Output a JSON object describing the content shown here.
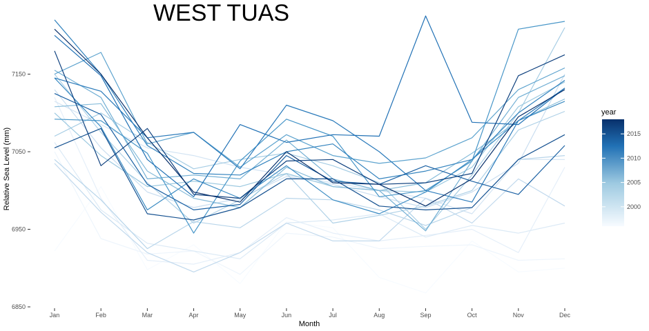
{
  "chart_data": {
    "type": "line",
    "title": "WEST TUAS",
    "xlabel": "Month",
    "ylabel": "Relative Sea Level (mm)",
    "categories": [
      "Jan",
      "Feb",
      "Mar",
      "Apr",
      "May",
      "Jun",
      "Jul",
      "Aug",
      "Sep",
      "Oct",
      "Nov",
      "Dec"
    ],
    "ylim": [
      6850,
      7210
    ],
    "yticks": [
      6850,
      6950,
      7050,
      7150
    ],
    "grid": false,
    "legend": {
      "title": "year",
      "position": "right",
      "type": "colorbar",
      "range": [
        1996,
        2018
      ],
      "ticks": [
        2000,
        2005,
        2010,
        2015
      ],
      "color_low": "#f7fbff",
      "color_high": "#08306b"
    },
    "series": [
      {
        "year": 1996,
        "values": [
          6922,
          7005,
          6898,
          6930,
          6880,
          6960,
          6952,
          6888,
          6868,
          6935,
          6895,
          6900
        ]
      },
      {
        "year": 1997,
        "values": [
          7050,
          6938,
          6918,
          6922,
          6892,
          6945,
          6940,
          6925,
          6928,
          6930,
          6910,
          6912
        ]
      },
      {
        "year": 1998,
        "values": [
          7120,
          6990,
          6910,
          6905,
          6920,
          6965,
          6945,
          6935,
          6942,
          6950,
          6920,
          7030
        ]
      },
      {
        "year": 1999,
        "values": [
          7062,
          6975,
          6932,
          6922,
          6912,
          6958,
          6962,
          6970,
          6940,
          6955,
          6945,
          6958
        ]
      },
      {
        "year": 2000,
        "values": [
          7115,
          7085,
          7055,
          7045,
          7030,
          7020,
          7010,
          7000,
          6990,
          6970,
          7040,
          7040
        ]
      },
      {
        "year": 2001,
        "values": [
          7130,
          7055,
          6998,
          6978,
          6990,
          7018,
          7008,
          6992,
          6978,
          6998,
          7035,
          7150
        ]
      },
      {
        "year": 2002,
        "values": [
          7035,
          6972,
          6920,
          6895,
          6920,
          6958,
          6935,
          6935,
          6990,
          6958,
          7015,
          6980
        ]
      },
      {
        "year": 2003,
        "values": [
          7040,
          6988,
          6925,
          6960,
          6952,
          6990,
          6988,
          6975,
          6955,
          6978,
          7040,
          7045
        ]
      },
      {
        "year": 2004,
        "values": [
          7150,
          7075,
          7010,
          6958,
          6988,
          7022,
          6958,
          6968,
          6980,
          7000,
          7078,
          7102
        ]
      },
      {
        "year": 2005,
        "values": [
          7070,
          7100,
          7062,
          7028,
          7040,
          7048,
          7032,
          7010,
          6950,
          7020,
          7100,
          7210
        ]
      },
      {
        "year": 2006,
        "values": [
          7100,
          7045,
          7005,
          7012,
          7005,
          7022,
          7005,
          7000,
          6998,
          7030,
          7108,
          7140
        ]
      },
      {
        "year": 2007,
        "values": [
          7108,
          7112,
          7025,
          6990,
          6978,
          7030,
          7005,
          7000,
          7010,
          7048,
          7090,
          7118
        ]
      },
      {
        "year": 2008,
        "values": [
          7155,
          7120,
          7015,
          7020,
          7015,
          7065,
          7015,
          7000,
          6948,
          7038,
          7120,
          7148
        ]
      },
      {
        "year": 2009,
        "values": [
          7150,
          7178,
          7060,
          7075,
          7030,
          7072,
          7045,
          7035,
          7042,
          7068,
          7130,
          7158
        ]
      },
      {
        "year": 2010,
        "values": [
          7092,
          7090,
          7048,
          6945,
          7038,
          7092,
          7070,
          6992,
          7000,
          7038,
          7208,
          7218
        ]
      },
      {
        "year": 2011,
        "values": [
          7145,
          7082,
          6975,
          7015,
          6990,
          7032,
          6988,
          6970,
          6998,
          7040,
          7090,
          7115
        ]
      },
      {
        "year": 2012,
        "values": [
          7220,
          7150,
          7058,
          7022,
          7020,
          7050,
          7060,
          7015,
          7025,
          7040,
          7100,
          7142
        ]
      },
      {
        "year": 2013,
        "values": [
          7145,
          7128,
          7068,
          7075,
          7028,
          7110,
          7090,
          7050,
          7000,
          6985,
          7090,
          7132
        ]
      },
      {
        "year": 2014,
        "values": [
          7200,
          7148,
          7040,
          6992,
          7085,
          7062,
          7072,
          7070,
          7225,
          7088,
          7085,
          7132
        ]
      },
      {
        "year": 2015,
        "values": [
          7125,
          7098,
          7008,
          6975,
          6982,
          7045,
          7012,
          7008,
          7032,
          7012,
          6995,
          7058
        ]
      },
      {
        "year": 2016,
        "values": [
          7055,
          7080,
          6970,
          6962,
          6978,
          7015,
          7015,
          6980,
          6975,
          6978,
          7040,
          7072
        ]
      },
      {
        "year": 2017,
        "values": [
          7180,
          7032,
          7080,
          6995,
          6990,
          7038,
          7040,
          7008,
          7010,
          7022,
          7148,
          7175
        ]
      },
      {
        "year": 2018,
        "values": [
          7208,
          7150,
          7068,
          6998,
          6985,
          7050,
          7010,
          7008,
          6980,
          7015,
          7095,
          7130
        ]
      }
    ]
  }
}
